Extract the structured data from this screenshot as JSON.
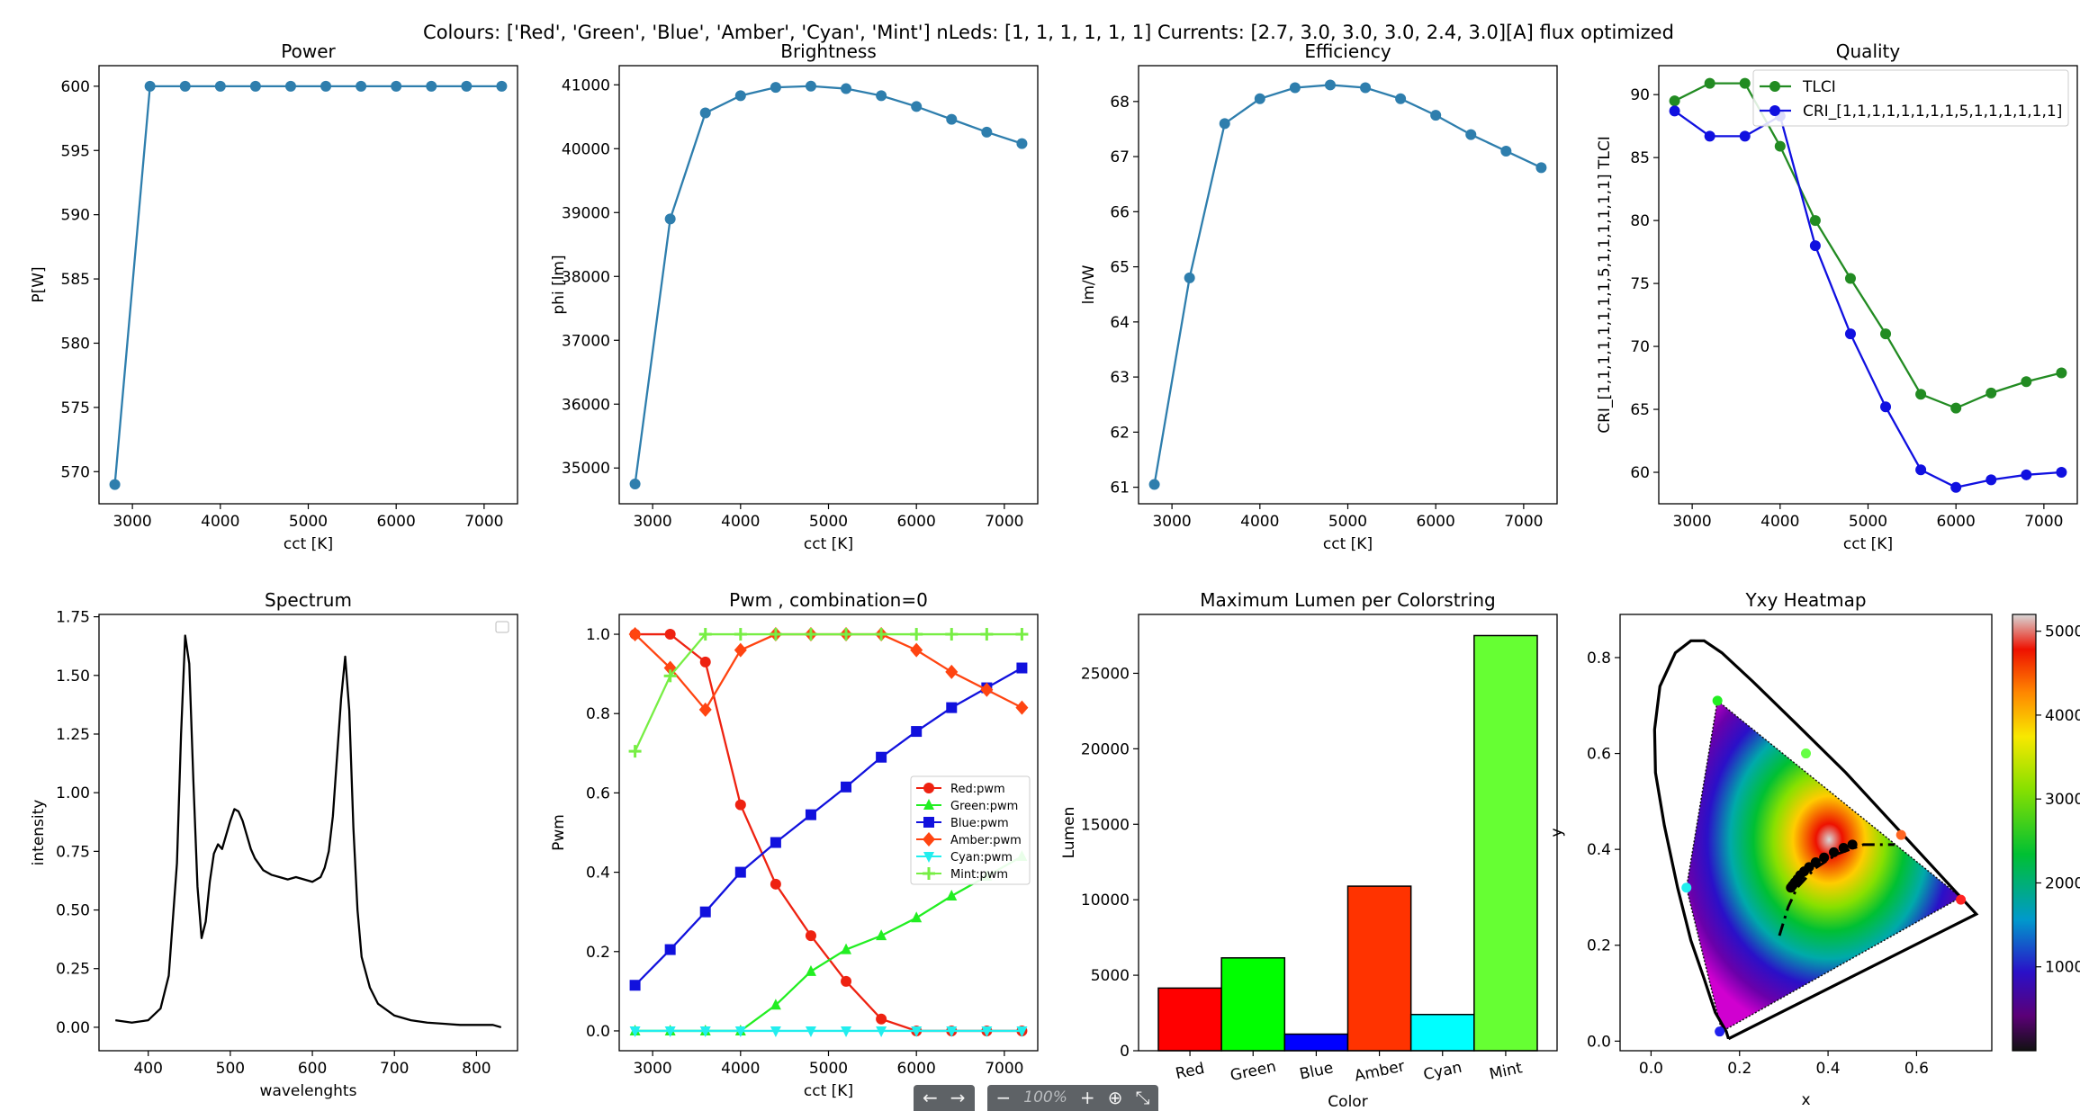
{
  "suptitle": "Colours: ['Red', 'Green', 'Blue', 'Amber', 'Cyan', 'Mint']   nLeds: [1, 1, 1, 1, 1, 1]   Currents: [2.7, 3.0, 3.0, 3.0, 2.4, 3.0][A]   flux optimized",
  "toolbar": {
    "prev": "←",
    "next": "→",
    "zoom_out": "−",
    "zoom_level": "100%",
    "zoom_in": "+",
    "download": "⊕",
    "collapse": "⤡"
  },
  "colors": {
    "line": "#2e7ead",
    "tlci": "#228b22",
    "cri": "#1010e0"
  },
  "chart_data": [
    {
      "id": "power",
      "type": "line",
      "title": "Power",
      "xlabel": "cct [K]",
      "ylabel": "P[W]",
      "xlim": [
        2620,
        7380
      ],
      "ylim": [
        567.5,
        601.6
      ],
      "xticks": [
        3000,
        4000,
        5000,
        6000,
        7000
      ],
      "yticks": [
        570,
        575,
        580,
        585,
        590,
        595,
        600
      ],
      "series": [
        {
          "name": "P",
          "x": [
            2800,
            3200,
            3600,
            4000,
            4400,
            4800,
            5200,
            5600,
            6000,
            6400,
            6800,
            7200
          ],
          "y": [
            569,
            600,
            600,
            600,
            600,
            600,
            600,
            600,
            600,
            600,
            600,
            600
          ]
        }
      ]
    },
    {
      "id": "brightness",
      "type": "line",
      "title": "Brightness",
      "xlabel": "cct [K]",
      "ylabel": "phi [lm]",
      "xlim": [
        2620,
        7380
      ],
      "ylim": [
        34440,
        41300
      ],
      "xticks": [
        3000,
        4000,
        5000,
        6000,
        7000
      ],
      "yticks": [
        35000,
        36000,
        37000,
        38000,
        39000,
        40000,
        41000
      ],
      "series": [
        {
          "name": "phi",
          "x": [
            2800,
            3200,
            3600,
            4000,
            4400,
            4800,
            5200,
            5600,
            6000,
            6400,
            6800,
            7200
          ],
          "y": [
            34750,
            38900,
            40560,
            40830,
            40960,
            40980,
            40940,
            40830,
            40660,
            40460,
            40260,
            40080
          ]
        }
      ]
    },
    {
      "id": "efficiency",
      "type": "line",
      "title": "Efficiency",
      "xlabel": "cct [K]",
      "ylabel": "lm/W",
      "xlim": [
        2620,
        7380
      ],
      "ylim": [
        60.7,
        68.65
      ],
      "xticks": [
        3000,
        4000,
        5000,
        6000,
        7000
      ],
      "yticks": [
        61,
        62,
        63,
        64,
        65,
        66,
        67,
        68
      ],
      "series": [
        {
          "name": "lm/W",
          "x": [
            2800,
            3200,
            3600,
            4000,
            4400,
            4800,
            5200,
            5600,
            6000,
            6400,
            6800,
            7200
          ],
          "y": [
            61.05,
            64.8,
            67.6,
            68.05,
            68.25,
            68.3,
            68.25,
            68.05,
            67.75,
            67.4,
            67.1,
            66.8
          ]
        }
      ]
    },
    {
      "id": "quality",
      "type": "line",
      "title": "Quality",
      "xlabel": "cct [K]",
      "ylabel": "CRI_[1,1,1,1,1,1,1,1,5,1,1,1,1,1,1] TLCI",
      "xlim": [
        2620,
        7380
      ],
      "ylim": [
        57.5,
        92.3
      ],
      "xticks": [
        3000,
        4000,
        5000,
        6000,
        7000
      ],
      "yticks": [
        60,
        65,
        70,
        75,
        80,
        85,
        90
      ],
      "series": [
        {
          "name": "TLCI",
          "color": "#228b22",
          "x": [
            2800,
            3200,
            3600,
            4000,
            4400,
            4800,
            5200,
            5600,
            6000,
            6400,
            6800,
            7200
          ],
          "y": [
            89.5,
            90.9,
            90.9,
            85.9,
            80.0,
            75.4,
            71.0,
            66.2,
            65.1,
            66.3,
            67.2,
            67.9
          ]
        },
        {
          "name": "CRI_[1,1,1,1,1,1,1,1,5,1,1,1,1,1,1]",
          "color": "#1010e0",
          "x": [
            2800,
            3200,
            3600,
            4000,
            4400,
            4800,
            5200,
            5600,
            6000,
            6400,
            6800,
            7200
          ],
          "y": [
            88.7,
            86.7,
            86.7,
            88.3,
            78.0,
            71.0,
            65.2,
            60.2,
            58.8,
            59.4,
            59.8,
            60.0
          ]
        }
      ],
      "legend": "top-right"
    },
    {
      "id": "spectrum",
      "type": "line",
      "title": "Spectrum",
      "xlabel": "wavelenghts",
      "ylabel": "intensity",
      "xlim": [
        340,
        850
      ],
      "ylim": [
        -0.1,
        1.76
      ],
      "xticks": [
        400,
        500,
        600,
        700,
        800
      ],
      "yticks": [
        0.0,
        0.25,
        0.5,
        0.75,
        1.0,
        1.25,
        1.5,
        1.75
      ],
      "series": [
        {
          "name": "spectrum",
          "x": [
            360,
            380,
            400,
            415,
            425,
            435,
            440,
            445,
            450,
            455,
            460,
            465,
            470,
            475,
            480,
            485,
            490,
            495,
            500,
            505,
            510,
            515,
            520,
            525,
            530,
            540,
            550,
            560,
            570,
            580,
            590,
            600,
            610,
            615,
            620,
            625,
            630,
            635,
            640,
            645,
            650,
            655,
            660,
            670,
            680,
            700,
            720,
            740,
            760,
            780,
            800,
            820,
            830
          ],
          "y": [
            0.03,
            0.02,
            0.03,
            0.08,
            0.22,
            0.7,
            1.25,
            1.67,
            1.55,
            1.05,
            0.6,
            0.38,
            0.45,
            0.62,
            0.74,
            0.78,
            0.76,
            0.82,
            0.88,
            0.93,
            0.92,
            0.88,
            0.82,
            0.76,
            0.72,
            0.67,
            0.65,
            0.64,
            0.63,
            0.64,
            0.63,
            0.62,
            0.64,
            0.68,
            0.75,
            0.9,
            1.15,
            1.4,
            1.58,
            1.35,
            0.85,
            0.5,
            0.3,
            0.17,
            0.1,
            0.05,
            0.03,
            0.02,
            0.015,
            0.01,
            0.01,
            0.01,
            0.0
          ]
        }
      ],
      "legend": "empty"
    },
    {
      "id": "pwm",
      "type": "line",
      "title": "Pwm , combination=0",
      "xlabel": "cct [K]",
      "ylabel": "Pwm",
      "xlim": [
        2620,
        7380
      ],
      "ylim": [
        -0.05,
        1.05
      ],
      "xticks": [
        3000,
        4000,
        5000,
        6000,
        7000
      ],
      "yticks": [
        0.0,
        0.2,
        0.4,
        0.6,
        0.8,
        1.0
      ],
      "x": [
        2800,
        3200,
        3600,
        4000,
        4400,
        4800,
        5200,
        5600,
        6000,
        6400,
        6800,
        7200
      ],
      "series": [
        {
          "name": "Red:pwm",
          "color": "#ee2211",
          "marker": "circle",
          "y": [
            1.0,
            1.0,
            0.93,
            0.57,
            0.37,
            0.24,
            0.125,
            0.03,
            0,
            0,
            0,
            0
          ]
        },
        {
          "name": "Green:pwm",
          "color": "#22ee22",
          "marker": "triangle-up",
          "y": [
            0,
            0,
            0,
            0,
            0.065,
            0.15,
            0.205,
            0.24,
            0.285,
            0.34,
            0.39,
            0.44
          ]
        },
        {
          "name": "Blue:pwm",
          "color": "#1111dd",
          "marker": "square",
          "y": [
            0.115,
            0.205,
            0.3,
            0.4,
            0.475,
            0.545,
            0.615,
            0.69,
            0.755,
            0.815,
            0.865,
            0.915
          ]
        },
        {
          "name": "Amber:pwm",
          "color": "#ff4411",
          "marker": "diamond",
          "y": [
            1.0,
            0.915,
            0.81,
            0.96,
            1.0,
            1.0,
            1.0,
            1.0,
            0.96,
            0.905,
            0.86,
            0.815
          ]
        },
        {
          "name": "Cyan:pwm",
          "color": "#22eeee",
          "marker": "triangle-down",
          "y": [
            0,
            0,
            0,
            0,
            0,
            0,
            0,
            0,
            0,
            0,
            0,
            0
          ]
        },
        {
          "name": "Mint:pwm",
          "color": "#77ee44",
          "marker": "plus",
          "y": [
            0.705,
            0.895,
            1.0,
            1.0,
            1.0,
            1.0,
            1.0,
            1.0,
            1.0,
            1.0,
            1.0,
            1.0
          ]
        }
      ],
      "legend": "center-right"
    },
    {
      "id": "maxlumen",
      "type": "bar",
      "title": "Maximum Lumen per Colorstring",
      "xlabel": "Color",
      "ylabel": "Lumen",
      "ylim": [
        0,
        28900
      ],
      "yticks": [
        0,
        5000,
        10000,
        15000,
        20000,
        25000
      ],
      "categories": [
        "Red",
        "Green",
        "Blue",
        "Amber",
        "Cyan",
        "Mint"
      ],
      "values": [
        4150,
        6150,
        1100,
        10900,
        2400,
        27500
      ],
      "bar_colors": [
        "#ff0000",
        "#00ff00",
        "#0000ff",
        "#ff3300",
        "#00ffff",
        "#66ff33"
      ]
    },
    {
      "id": "heatmap",
      "type": "heatmap",
      "title": "Yxy Heatmap",
      "xlabel": "x",
      "ylabel": "y",
      "xlim": [
        -0.07,
        0.77
      ],
      "ylim": [
        -0.02,
        0.89
      ],
      "xticks": [
        0.0,
        0.2,
        0.4,
        0.6
      ],
      "yticks": [
        0.0,
        0.2,
        0.4,
        0.6,
        0.8
      ],
      "colorbar": {
        "range": [
          0,
          5200
        ],
        "ticks": [
          1000,
          2000,
          3000,
          4000,
          5000
        ],
        "tick_labels": [
          "1000",
          "2000",
          "3000",
          "4000",
          "5000"
        ]
      },
      "spectral_locus": [
        [
          0.175,
          0.005
        ],
        [
          0.17,
          0.02
        ],
        [
          0.145,
          0.06
        ],
        [
          0.12,
          0.13
        ],
        [
          0.09,
          0.21
        ],
        [
          0.06,
          0.32
        ],
        [
          0.03,
          0.45
        ],
        [
          0.01,
          0.56
        ],
        [
          0.008,
          0.65
        ],
        [
          0.02,
          0.74
        ],
        [
          0.055,
          0.81
        ],
        [
          0.09,
          0.835
        ],
        [
          0.12,
          0.835
        ],
        [
          0.16,
          0.81
        ],
        [
          0.23,
          0.75
        ],
        [
          0.33,
          0.66
        ],
        [
          0.44,
          0.56
        ],
        [
          0.55,
          0.45
        ],
        [
          0.64,
          0.36
        ],
        [
          0.7,
          0.3
        ],
        [
          0.735,
          0.265
        ],
        [
          0.175,
          0.005
        ]
      ],
      "gamut": [
        [
          0.15,
          0.71
        ],
        [
          0.7,
          0.3
        ],
        [
          0.16,
          0.02
        ],
        [
          0.08,
          0.32
        ]
      ],
      "primaries": [
        {
          "name": "Red",
          "x": 0.7,
          "y": 0.295,
          "color": "#ff2222"
        },
        {
          "name": "Green",
          "x": 0.15,
          "y": 0.71,
          "color": "#22ee22"
        },
        {
          "name": "Blue",
          "x": 0.155,
          "y": 0.02,
          "color": "#2222ee"
        },
        {
          "name": "Amber",
          "x": 0.565,
          "y": 0.43,
          "color": "#ff6622"
        },
        {
          "name": "Cyan",
          "x": 0.08,
          "y": 0.32,
          "color": "#22eeee"
        },
        {
          "name": "Mint",
          "x": 0.35,
          "y": 0.6,
          "color": "#66ff44"
        }
      ],
      "planckian_locus": [
        [
          0.29,
          0.22
        ],
        [
          0.3,
          0.25
        ],
        [
          0.31,
          0.28
        ],
        [
          0.33,
          0.32
        ],
        [
          0.37,
          0.36
        ],
        [
          0.42,
          0.39
        ],
        [
          0.48,
          0.41
        ],
        [
          0.55,
          0.41
        ]
      ],
      "cct_points": [
        [
          0.455,
          0.41
        ],
        [
          0.435,
          0.403
        ],
        [
          0.413,
          0.394
        ],
        [
          0.391,
          0.383
        ],
        [
          0.372,
          0.373
        ],
        [
          0.357,
          0.363
        ],
        [
          0.346,
          0.354
        ],
        [
          0.337,
          0.346
        ],
        [
          0.331,
          0.338
        ],
        [
          0.325,
          0.331
        ],
        [
          0.32,
          0.325
        ],
        [
          0.316,
          0.32
        ]
      ]
    }
  ]
}
